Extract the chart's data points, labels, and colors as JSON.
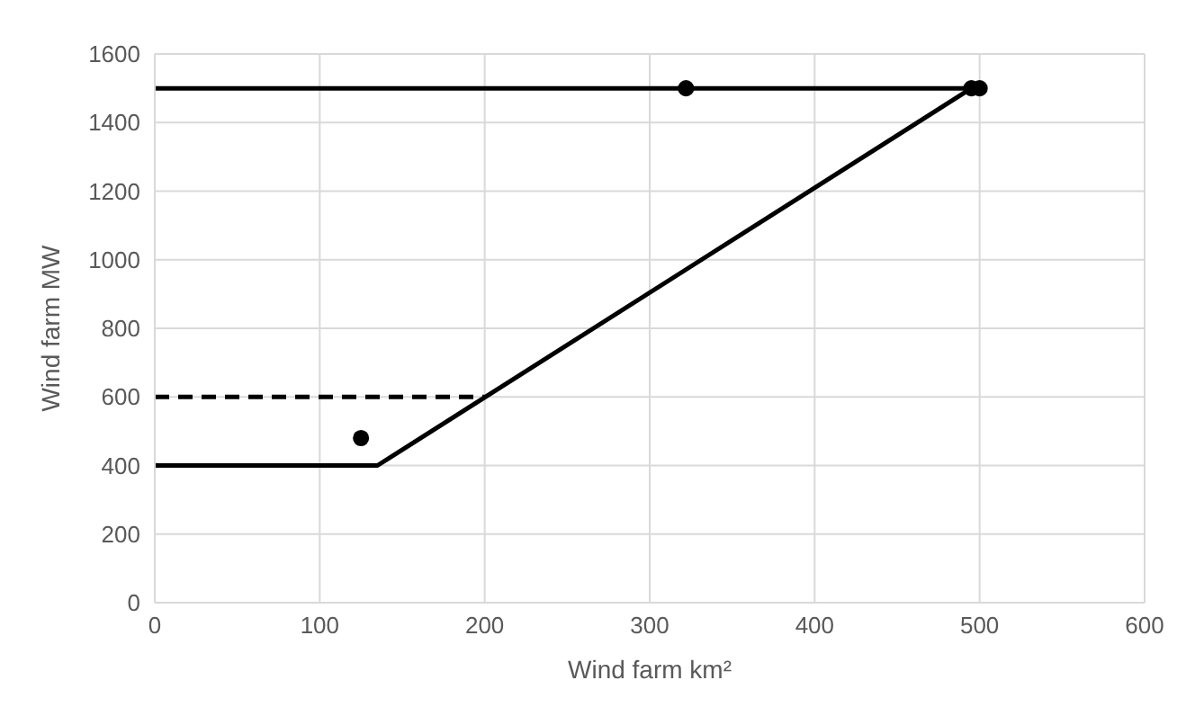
{
  "chart_data": {
    "type": "line",
    "xlabel": "Wind farm km²",
    "ylabel": "Wind farm MW",
    "xlim": [
      0,
      600
    ],
    "xticks": [
      0,
      100,
      200,
      300,
      400,
      500,
      600
    ],
    "ylim": [
      0,
      1600
    ],
    "yticks": [
      0,
      200,
      400,
      600,
      800,
      1000,
      1200,
      1400,
      1600
    ],
    "grid": true,
    "legend": false,
    "series": [
      {
        "color": "#000000",
        "x": [
          0,
          135,
          495
        ],
        "values": [
          400,
          400,
          1500
        ],
        "line_style": "solid",
        "marker": "none"
      },
      {
        "color": "#000000",
        "x": [
          0,
          500
        ],
        "values": [
          1500,
          1500
        ],
        "line_style": "solid",
        "marker": "none"
      },
      {
        "color": "#000000",
        "x": [
          0,
          200
        ],
        "values": [
          600,
          600
        ],
        "line_style": "dashed",
        "marker": "none"
      },
      {
        "type": "scatter",
        "color": "#000000",
        "x": [
          125,
          322,
          495,
          500
        ],
        "values": [
          480,
          1500,
          1500,
          1500
        ],
        "marker": "circle"
      }
    ]
  }
}
